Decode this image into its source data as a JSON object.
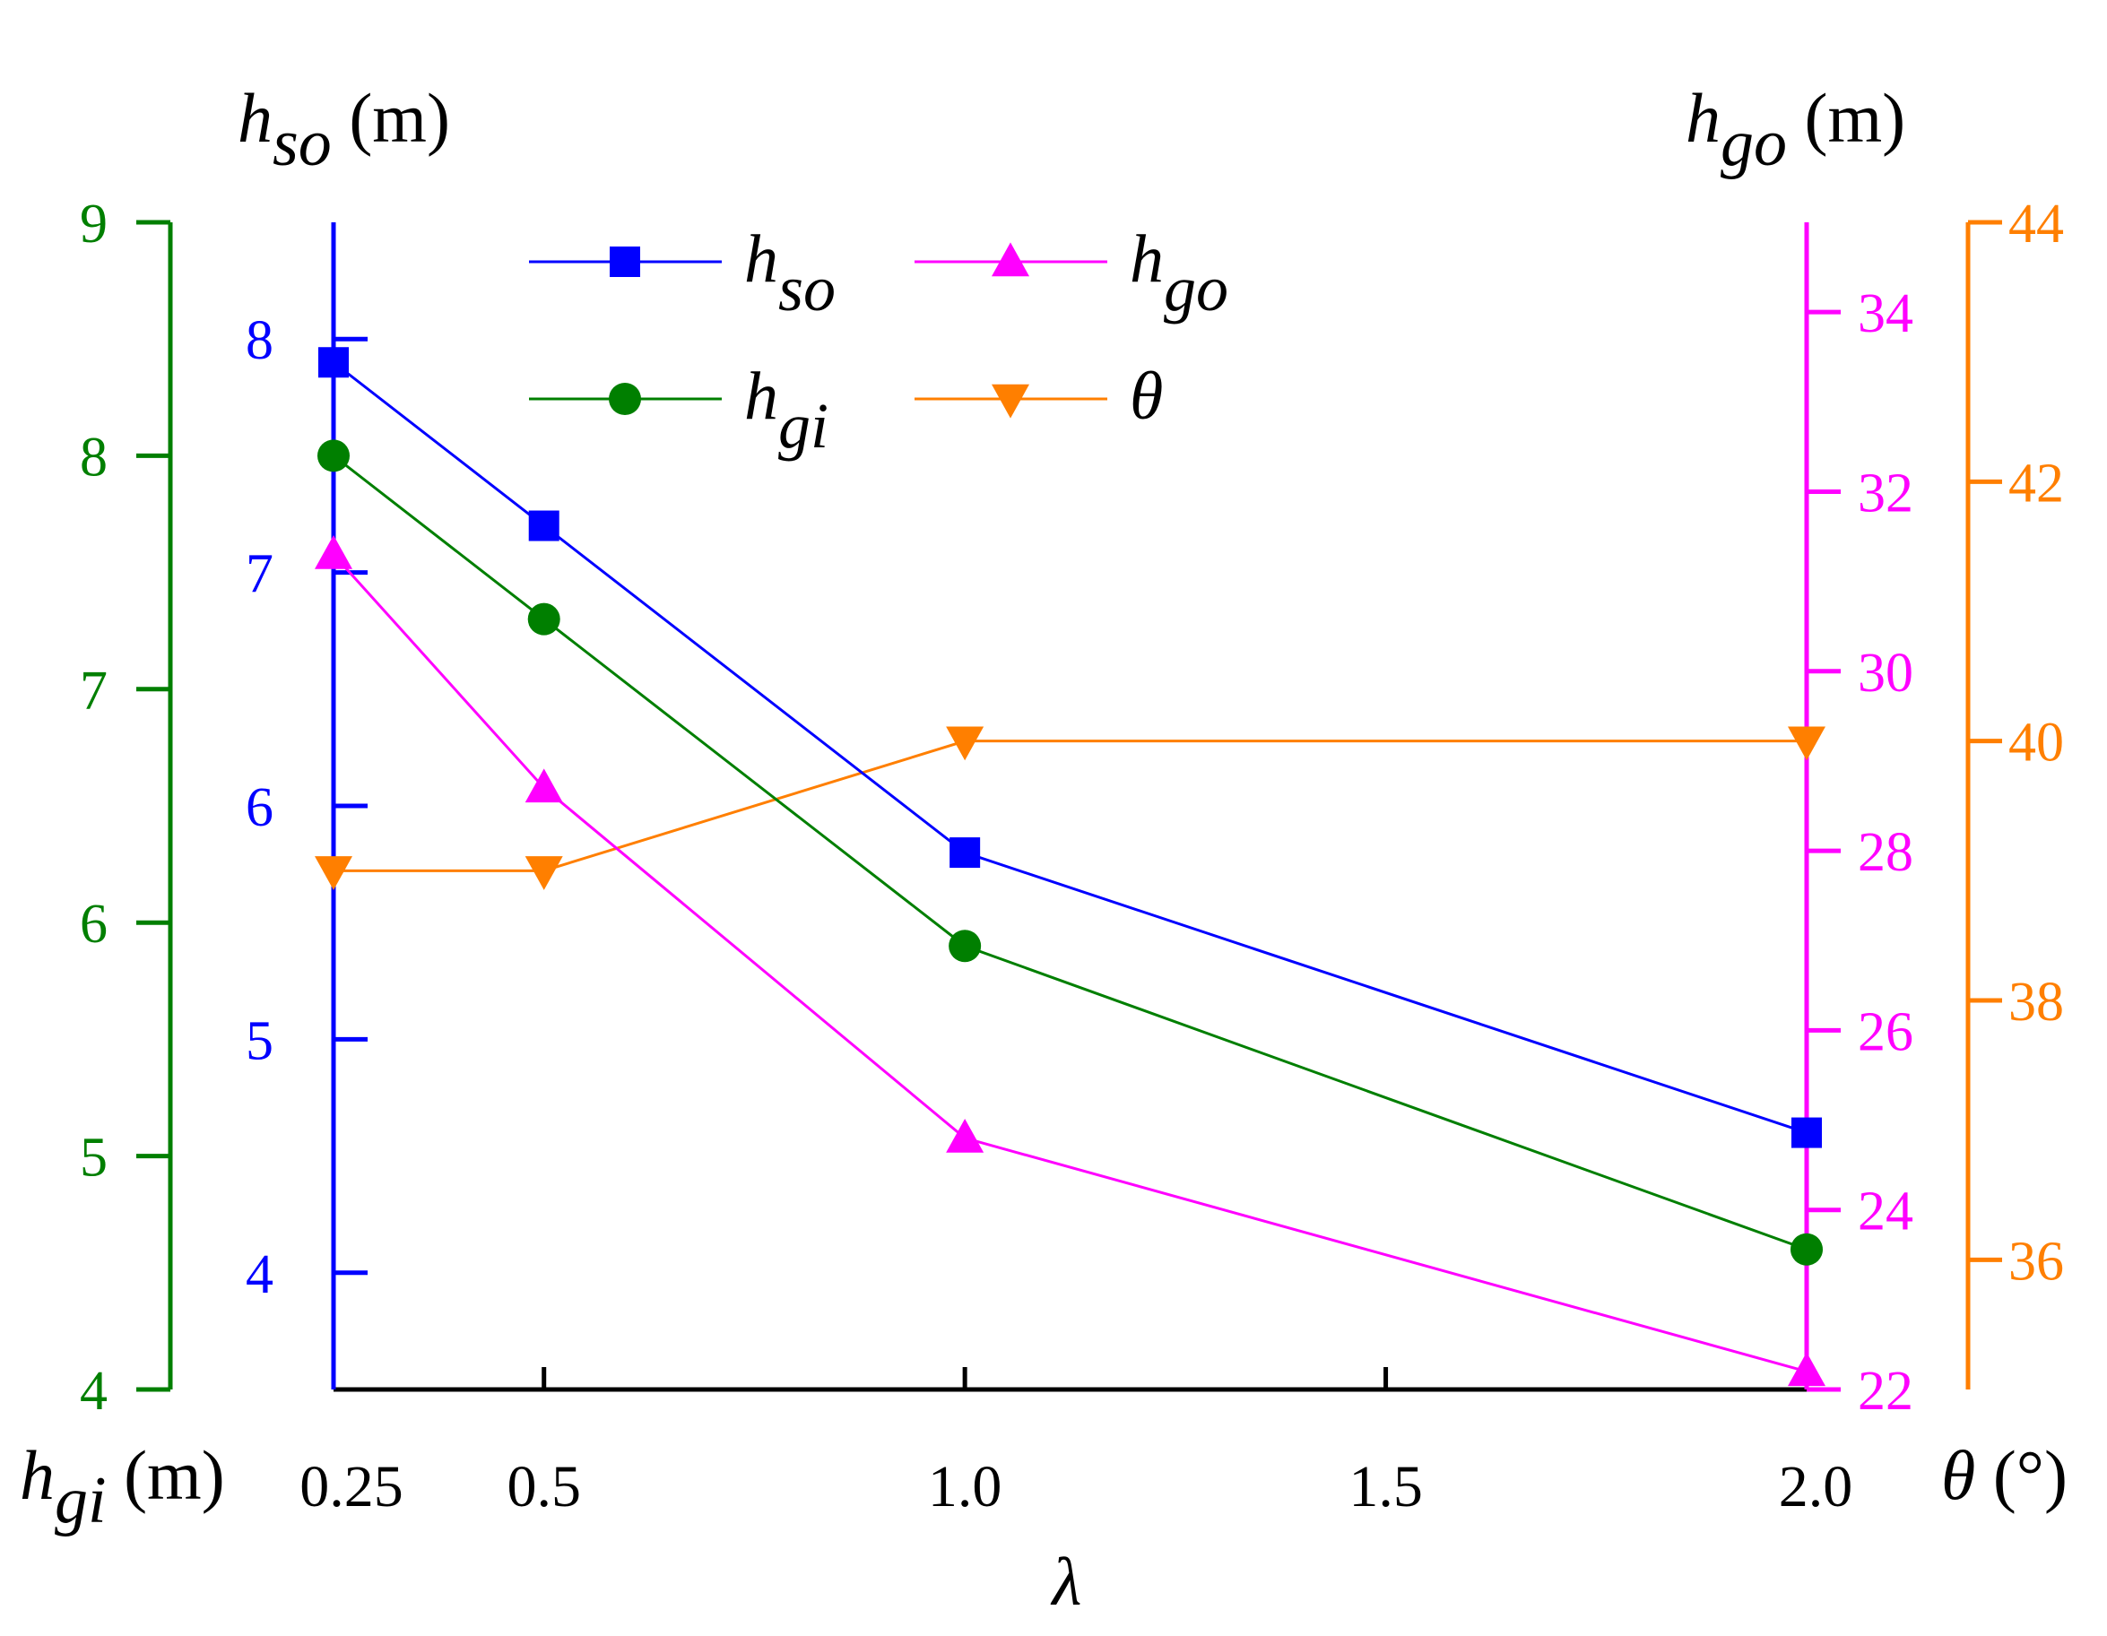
{
  "chart_data": {
    "type": "line",
    "xlabel": "λ",
    "x": [
      0.25,
      0.5,
      1.0,
      2.0
    ],
    "x_ticks": [
      "0.25",
      "0.5",
      "1.0",
      "1.5",
      "2.0"
    ],
    "x_tick_values": [
      0.25,
      0.5,
      1.0,
      1.5,
      2.0
    ],
    "xlim": [
      0.25,
      2.0
    ],
    "axes": {
      "hgi": {
        "color": "#007F00",
        "ylim": [
          4,
          9
        ],
        "ticks": [
          "4",
          "5",
          "6",
          "7",
          "8",
          "9"
        ],
        "tick_values": [
          4,
          5,
          6,
          7,
          8,
          9
        ],
        "label_main": "h",
        "label_sub": "gi",
        "label_unit": " (m)"
      },
      "hso": {
        "color": "#0000FF",
        "ylim": [
          3.5,
          8.5
        ],
        "ticks": [
          "4",
          "5",
          "6",
          "7",
          "8"
        ],
        "tick_values": [
          4,
          5,
          6,
          7,
          8
        ],
        "label_main": "h",
        "label_sub": "so",
        "label_unit": " (m)"
      },
      "hgo": {
        "color": "#FF00FF",
        "ylim": [
          22,
          35
        ],
        "ticks": [
          "22",
          "24",
          "26",
          "28",
          "30",
          "32",
          "34"
        ],
        "tick_values": [
          22,
          24,
          26,
          28,
          30,
          32,
          34
        ],
        "label_main": "h",
        "label_sub": "go",
        "label_unit": " (m)"
      },
      "theta": {
        "color": "#FF7F00",
        "ylim": [
          35,
          44
        ],
        "ticks": [
          "36",
          "38",
          "40",
          "42",
          "44"
        ],
        "tick_values": [
          36,
          38,
          40,
          42,
          44
        ],
        "label_main": "θ",
        "label_unit": " (°)"
      }
    },
    "series": [
      {
        "name": "hso",
        "legend_main": "h",
        "legend_sub": "so",
        "axis": "hso",
        "marker": "square",
        "color": "#0000FF",
        "values": [
          7.9,
          7.2,
          5.8,
          4.6
        ]
      },
      {
        "name": "hgo",
        "legend_main": "h",
        "legend_sub": "go",
        "axis": "hgo",
        "marker": "triangle-up",
        "color": "#FF00FF",
        "values": [
          31.3,
          28.7,
          24.8,
          22.2
        ]
      },
      {
        "name": "hgi",
        "legend_main": "h",
        "legend_sub": "gi",
        "axis": "hgi",
        "marker": "circle",
        "color": "#007F00",
        "values": [
          8.0,
          7.3,
          5.9,
          4.6
        ]
      },
      {
        "name": "theta",
        "legend_main": "θ",
        "legend_sub": "",
        "axis": "theta",
        "marker": "triangle-down",
        "color": "#FF7F00",
        "values": [
          39.0,
          39.0,
          40.0,
          40.0
        ]
      }
    ]
  }
}
